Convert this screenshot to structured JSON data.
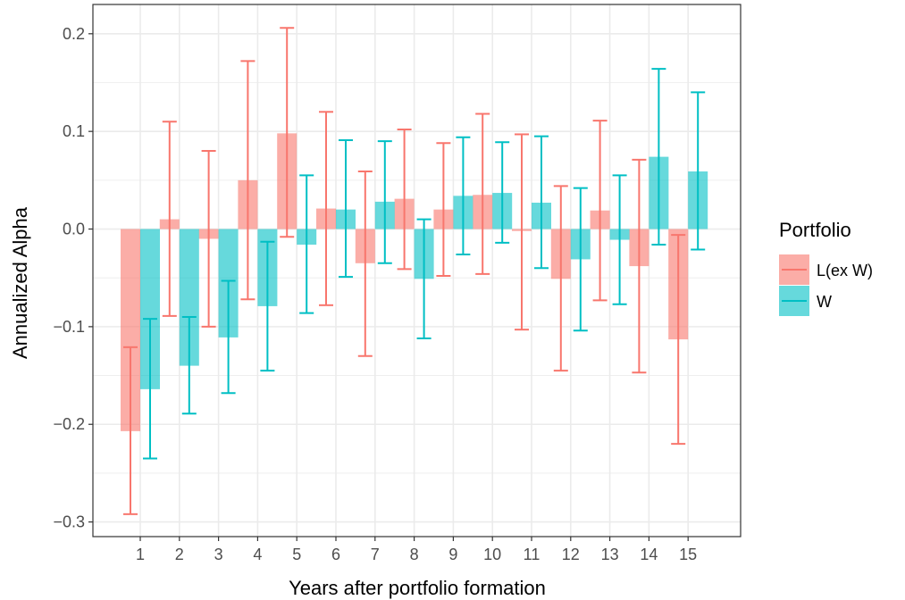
{
  "chart_data": {
    "type": "bar",
    "xlabel": "Years after portfolio formation",
    "ylabel": "Annualized Alpha",
    "categories": [
      "1",
      "2",
      "3",
      "4",
      "5",
      "6",
      "7",
      "8",
      "9",
      "10",
      "11",
      "12",
      "13",
      "14",
      "15"
    ],
    "ylim": [
      -0.315,
      0.23
    ],
    "yticks": [
      -0.3,
      -0.2,
      -0.1,
      0.0,
      0.1,
      0.2
    ],
    "ytick_labels": [
      "−0.3",
      "−0.2",
      "−0.1",
      "0.0",
      "0.1",
      "0.2"
    ],
    "grid": true,
    "error_bars": true,
    "legend": {
      "title": "Portfolio",
      "position": "right"
    },
    "series": [
      {
        "name": "L(ex W)",
        "color": "#F8766D",
        "values": [
          -0.207,
          0.01,
          -0.01,
          0.05,
          0.098,
          0.021,
          -0.035,
          0.031,
          0.02,
          0.035,
          -0.002,
          -0.051,
          0.019,
          -0.038,
          -0.113
        ],
        "lower": [
          -0.292,
          -0.089,
          -0.1,
          -0.072,
          -0.008,
          -0.078,
          -0.13,
          -0.041,
          -0.048,
          -0.046,
          -0.103,
          -0.145,
          -0.073,
          -0.147,
          -0.22
        ],
        "upper": [
          -0.121,
          0.11,
          0.08,
          0.172,
          0.206,
          0.12,
          0.059,
          0.102,
          0.088,
          0.118,
          0.097,
          0.044,
          0.111,
          0.071,
          -0.006
        ]
      },
      {
        "name": "W",
        "color": "#00BFC4",
        "values": [
          -0.164,
          -0.14,
          -0.111,
          -0.079,
          -0.016,
          0.02,
          0.028,
          -0.051,
          0.034,
          0.037,
          0.027,
          -0.031,
          -0.011,
          0.074,
          0.059
        ],
        "lower": [
          -0.235,
          -0.189,
          -0.168,
          -0.145,
          -0.086,
          -0.049,
          -0.035,
          -0.112,
          -0.026,
          -0.014,
          -0.04,
          -0.104,
          -0.077,
          -0.016,
          -0.021
        ],
        "upper": [
          -0.092,
          -0.09,
          -0.053,
          -0.013,
          0.055,
          0.091,
          0.09,
          0.01,
          0.094,
          0.089,
          0.095,
          0.042,
          0.055,
          0.164,
          0.14
        ]
      }
    ]
  }
}
